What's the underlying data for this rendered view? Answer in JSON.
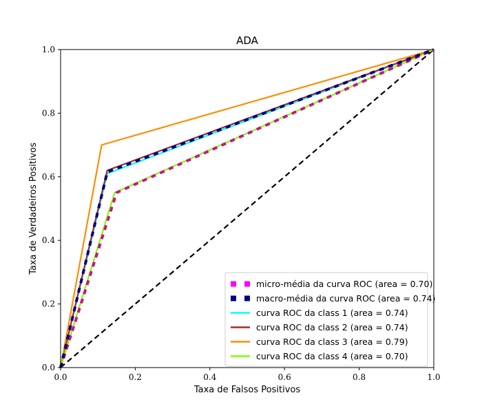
{
  "chart_data": {
    "type": "line",
    "title": "ADA",
    "xlabel": "Taxa de Falsos Positivos",
    "ylabel": "Taxa de Verdadeiros Positivos",
    "xlim": [
      0.0,
      1.0
    ],
    "ylim": [
      0.0,
      1.0
    ],
    "xticks": [
      "0.0",
      "0.2",
      "0.4",
      "0.6",
      "0.8",
      "1.0"
    ],
    "yticks": [
      "0.0",
      "0.2",
      "0.4",
      "0.6",
      "0.8",
      "1.0"
    ],
    "grid": false,
    "legend_position": "lower-right",
    "series": [
      {
        "name": "micro-média da curva ROC (area = 0.70)",
        "color": "#c71585",
        "legend_color": "#ff00ff",
        "style": "dotted",
        "x": [
          0.0,
          0.15,
          1.0
        ],
        "y": [
          0.0,
          0.55,
          1.0
        ]
      },
      {
        "name": "macro-média da curva ROC (area = 0.74)",
        "color": "#000080",
        "legend_color": "#000080",
        "style": "dotted",
        "x": [
          0.0,
          0.125,
          1.0
        ],
        "y": [
          0.0,
          0.615,
          1.0
        ]
      },
      {
        "name": "curva ROC da class 1 (area = 0.74)",
        "color": "#00ffff",
        "style": "solid",
        "x": [
          0.0,
          0.125,
          1.0
        ],
        "y": [
          0.0,
          0.61,
          1.0
        ]
      },
      {
        "name": "curva ROC da class 2 (area = 0.74)",
        "color": "#a52a2a",
        "style": "solid",
        "x": [
          0.0,
          0.125,
          1.0
        ],
        "y": [
          0.0,
          0.62,
          1.0
        ]
      },
      {
        "name": "curva ROC da class 3 (area = 0.79)",
        "color": "#ff8c00",
        "style": "solid",
        "x": [
          0.0,
          0.11,
          1.0
        ],
        "y": [
          0.0,
          0.7,
          1.0
        ]
      },
      {
        "name": "curva ROC da class 4 (area = 0.70)",
        "color": "#7fff00",
        "style": "solid",
        "x": [
          0.0,
          0.145,
          1.0
        ],
        "y": [
          0.0,
          0.55,
          1.0
        ]
      }
    ],
    "reference_line": {
      "x": [
        0.0,
        1.0
      ],
      "y": [
        0.0,
        1.0
      ],
      "color": "#000000",
      "style": "dashed"
    }
  }
}
